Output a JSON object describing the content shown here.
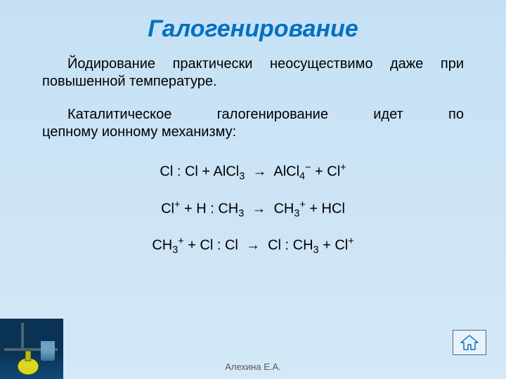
{
  "slide": {
    "title": "Галогенирование",
    "paragraph1": "Йодирование практически неосуществимо даже при повышенной температуре.",
    "paragraph2_a": "Каталитическое",
    "paragraph2_b": "галогенирование",
    "paragraph2_c": "идет",
    "paragraph2_d": "по",
    "paragraph2_line2": "цепному ионному механизму:",
    "author": "Алехина Е.А."
  },
  "equations": {
    "eq1": {
      "html": "Cl : Cl + AlCl<sub>3</sub> &nbsp;→&nbsp; AlCl<sub>4</sub><sup>−</sup> + Cl<sup>+</sup>"
    },
    "eq2": {
      "html": "Cl<sup>+</sup> + H : CH<sub>3</sub> &nbsp;→&nbsp; CH<sub>3</sub><sup>+</sup> + HCl"
    },
    "eq3": {
      "html": "CH<sub>3</sub><sup>+</sup> + Cl : Cl &nbsp;→&nbsp; Cl : CH<sub>3</sub> + Cl<sup>+</sup>"
    }
  },
  "style": {
    "background_gradient_start": "#c5e0f5",
    "background_gradient_end": "#d4e8f7",
    "title_color": "#0070c0",
    "title_fontsize": 34,
    "body_fontsize": 20,
    "body_color": "#000000",
    "footer_color": "#595959",
    "footer_fontsize": 13,
    "nav_icon_color": "#0070c0",
    "nav_border": "#4a6a8a",
    "nav_bg": "#e8f2fa",
    "corner_bg_top": "#0a3254",
    "flask_yellow": "#d8d820",
    "flask_oil": "#5a6612"
  }
}
